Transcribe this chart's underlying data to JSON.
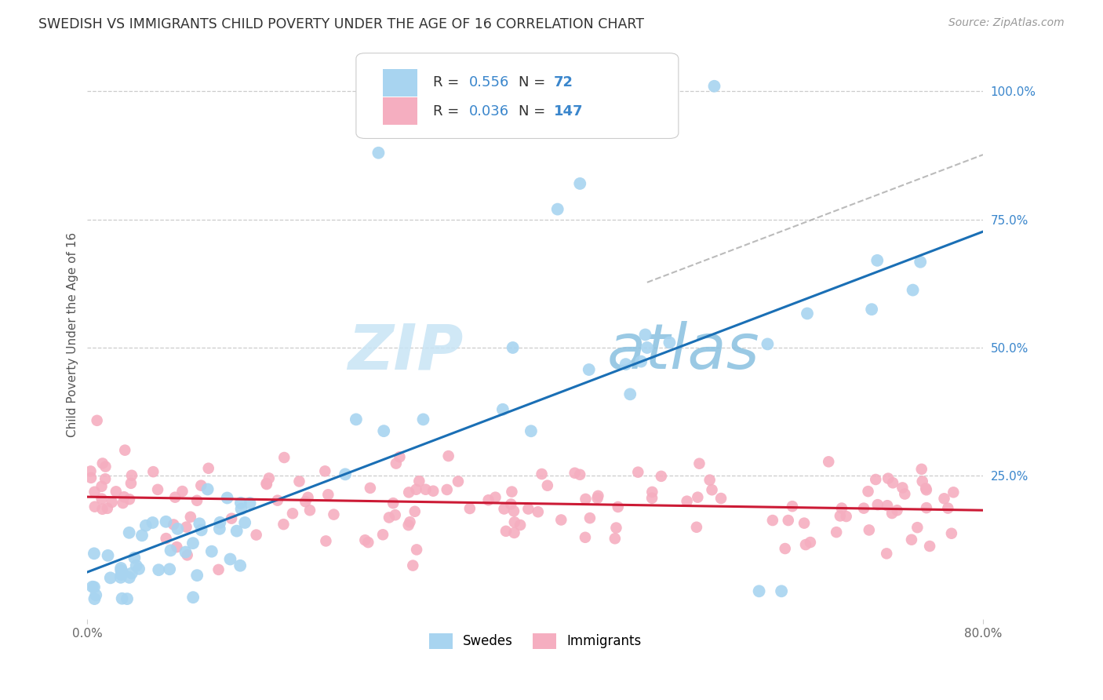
{
  "title": "SWEDISH VS IMMIGRANTS CHILD POVERTY UNDER THE AGE OF 16 CORRELATION CHART",
  "source": "Source: ZipAtlas.com",
  "ylabel": "Child Poverty Under the Age of 16",
  "swedes_R": "0.556",
  "swedes_N": "72",
  "immigrants_R": "0.036",
  "immigrants_N": "147",
  "swedes_color": "#a8d4f0",
  "immigrants_color": "#f5aec0",
  "swedes_line_color": "#1a6fb5",
  "immigrants_line_color": "#cc1a35",
  "dashed_line_color": "#aaaaaa",
  "background_color": "#ffffff",
  "grid_color": "#cccccc",
  "watermark_zip": "ZIP",
  "watermark_atlas": "atlas",
  "watermark_color_zip": "#b8d8f0",
  "watermark_color_atlas": "#7ab8e0",
  "title_color": "#333333",
  "source_color": "#999999",
  "right_tick_color": "#3a86cc",
  "xlim": [
    0.0,
    0.8
  ],
  "ylim": [
    -0.03,
    1.08
  ],
  "yticks": [
    0.25,
    0.5,
    0.75,
    1.0
  ],
  "ytick_labels": [
    "25.0%",
    "50.0%",
    "75.0%",
    "100.0%"
  ],
  "xticks": [
    0.0,
    0.8
  ],
  "xtick_labels": [
    "0.0%",
    "80.0%"
  ]
}
